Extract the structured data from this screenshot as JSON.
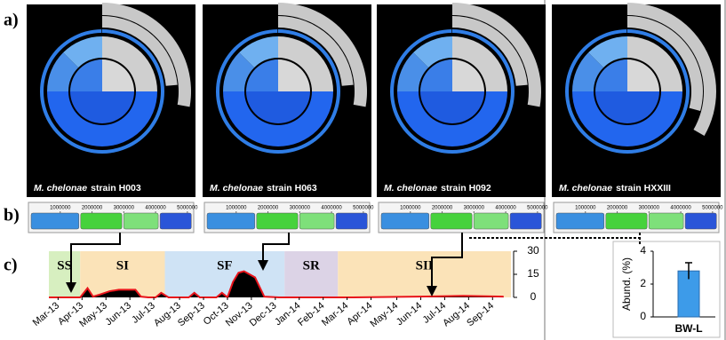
{
  "panel_labels": [
    "a)",
    "b)",
    "c)"
  ],
  "strains": [
    {
      "species": "M. chelonae",
      "strain": "strain H003"
    },
    {
      "species": "M. chelonae",
      "strain": "strain H063"
    },
    {
      "species": "M. chelonae",
      "strain": "strain H092"
    },
    {
      "species": "M. chelonae",
      "strain": "strain HXXIII"
    }
  ],
  "genome_ticks": [
    1000000,
    2000000,
    3000000,
    4000000,
    5000000
  ],
  "chart_data": [
    {
      "type": "area",
      "color": "#e8141b",
      "fill": "#000000",
      "phases": [
        {
          "label": "SS",
          "start": -0.5,
          "end": 1.2,
          "color": "#d7efc0"
        },
        {
          "label": "SI",
          "start": 1.2,
          "end": 5.8,
          "color": "#fbe3b8"
        },
        {
          "label": "SF",
          "start": 5.8,
          "end": 12.3,
          "color": "#cfe3f5"
        },
        {
          "label": "SR",
          "start": 12.3,
          "end": 15.2,
          "color": "#dcd3e6"
        },
        {
          "label": "SII",
          "start": 15.2,
          "end": 24.6,
          "color": "#fbe3b8"
        }
      ],
      "x": [
        -0.5,
        0.5,
        1.2,
        1.6,
        1.9,
        2.3,
        2.8,
        3.3,
        3.8,
        4.2,
        4.5,
        4.9,
        5.3,
        5.6,
        6.0,
        6.4,
        6.8,
        7.1,
        7.4,
        7.7,
        8.0,
        8.3,
        8.6,
        8.9,
        9.2,
        9.5,
        9.8,
        10.1,
        10.4,
        10.7,
        11.2,
        12.0,
        14.0,
        16.0,
        18.0,
        20.0,
        22.0,
        24.2
      ],
      "series": [
        {
          "values": [
            0,
            0,
            0,
            6,
            0.5,
            2,
            4,
            5,
            5,
            5,
            0.5,
            0,
            0,
            3,
            0,
            0,
            0,
            0,
            3,
            0,
            0,
            0,
            0,
            3,
            0,
            10,
            16,
            17,
            15,
            13,
            0.5,
            0,
            0,
            0,
            0.3,
            0.6,
            1,
            0.5
          ]
        }
      ],
      "xlim": [
        -0.5,
        24.6
      ],
      "xticks": [
        {
          "value": 0,
          "label": "Mar-13"
        },
        {
          "value": 1.3,
          "label": "Apr-13"
        },
        {
          "value": 2.6,
          "label": "May-13"
        },
        {
          "value": 3.9,
          "label": "Jun-13"
        },
        {
          "value": 5.2,
          "label": "Jul-13"
        },
        {
          "value": 6.6,
          "label": "Aug-13"
        },
        {
          "value": 7.9,
          "label": "Sep-13"
        },
        {
          "value": 9.2,
          "label": "Oct-13"
        },
        {
          "value": 10.5,
          "label": "Nov-13"
        },
        {
          "value": 11.8,
          "label": "Dec-13"
        },
        {
          "value": 13.1,
          "label": "Jan-14"
        },
        {
          "value": 14.4,
          "label": "Feb-14"
        },
        {
          "value": 15.7,
          "label": "Mar-14"
        },
        {
          "value": 17.0,
          "label": "Apr-14"
        },
        {
          "value": 18.4,
          "label": "May-14"
        },
        {
          "value": 19.7,
          "label": "Jun-14"
        },
        {
          "value": 21.0,
          "label": "Jul-14"
        },
        {
          "value": 22.3,
          "label": "Aug-14"
        },
        {
          "value": 23.6,
          "label": "Sep-14"
        }
      ],
      "ylim": [
        0,
        30
      ],
      "yticks": [
        0,
        15,
        30
      ]
    },
    {
      "type": "bar",
      "categories": [
        "BW-L"
      ],
      "values": [
        2.8
      ],
      "errors": [
        0.5
      ],
      "color": "#3d9be9",
      "y_label": "Abund. (%)",
      "ylim": [
        0,
        4
      ],
      "yticks": [
        0,
        2,
        4
      ]
    }
  ]
}
